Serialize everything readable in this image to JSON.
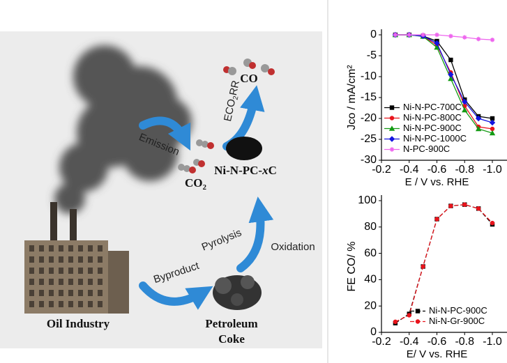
{
  "diagram": {
    "emission": "Emission",
    "co2": "CO",
    "co2_sub": "2",
    "eco2rr": "ECO",
    "eco2rr_sub": "2",
    "eco2rr_end": "RR",
    "co": "CO",
    "catalyst": "Ni-N-PC-",
    "catalyst_x": "x",
    "catalyst_end": "C",
    "pyrolysis": "Pyrolysis",
    "oxidation": "Oxidation",
    "byproduct": "Byproduct",
    "oil_industry": "Oil Industry",
    "coke_1": "Petroleum",
    "coke_2": "Coke"
  },
  "chart_data": [
    {
      "type": "line",
      "y_label": "Jco / mA/cm²",
      "x_label": "E / V vs. RHE",
      "x": [
        -0.3,
        -0.4,
        -0.5,
        -0.6,
        -0.7,
        -0.8,
        -0.9,
        -1.0
      ],
      "xlim": [
        -0.2,
        -1.0
      ],
      "xticks": [
        -0.2,
        -0.4,
        -0.6,
        -0.8,
        {
          "value": -1.0,
          "label": "-1.0"
        }
      ],
      "ylim": [
        -30,
        0
      ],
      "yticks": [
        0,
        -5,
        -10,
        -15,
        -20,
        -25,
        -30
      ],
      "legend": "lower left",
      "series": [
        {
          "name": "Ni-N-PC-700C",
          "color": "#000000",
          "marker": "square",
          "values": [
            0,
            0,
            -0.3,
            -1.5,
            -6,
            -15.5,
            -19.5,
            -20
          ]
        },
        {
          "name": "Ni-N-PC-800C",
          "color": "#e8141c",
          "marker": "circle",
          "values": [
            0,
            0,
            -0.3,
            -2.5,
            -9,
            -17,
            -22,
            -22.5
          ]
        },
        {
          "name": "Ni-N-PC-900C",
          "color": "#139a13",
          "marker": "triangle",
          "values": [
            0,
            0,
            -0.4,
            -3,
            -10.5,
            -18,
            -22.5,
            -23.5
          ]
        },
        {
          "name": "Ni-N-PC-1000C",
          "color": "#1414e0",
          "marker": "diamond",
          "values": [
            0,
            0,
            -0.3,
            -2,
            -9.5,
            -16,
            -20,
            -21
          ]
        },
        {
          "name": "N-PC-900C",
          "color": "#ee66ee",
          "marker": "star",
          "values": [
            0,
            0,
            0,
            0,
            -0.3,
            -0.6,
            -1,
            -1.2
          ]
        }
      ]
    },
    {
      "type": "line",
      "y_label": "FE CO/ %",
      "x_label": "E/ V vs. RHE",
      "x": [
        -0.3,
        -0.4,
        -0.5,
        -0.6,
        -0.7,
        -0.8,
        -0.9,
        -1.0
      ],
      "xlim": [
        -0.2,
        -1.0
      ],
      "xticks": [
        -0.2,
        -0.4,
        -0.6,
        -0.8,
        {
          "value": -1.0,
          "label": "-1.0"
        }
      ],
      "ylim": [
        0,
        100
      ],
      "yticks": [
        0,
        20,
        40,
        60,
        80,
        100
      ],
      "legend": "lower right",
      "linestyle": "dashed",
      "series": [
        {
          "name": "Ni-N-PC-900C",
          "color": "#000000",
          "marker": "square",
          "values": [
            7,
            14,
            50,
            86,
            96,
            97,
            94,
            82
          ]
        },
        {
          "name": "Ni-N-Gr-900C",
          "color": "#e8141c",
          "marker": "circle",
          "values": [
            8,
            13,
            50,
            86,
            96,
            97,
            94,
            83
          ]
        }
      ]
    }
  ]
}
